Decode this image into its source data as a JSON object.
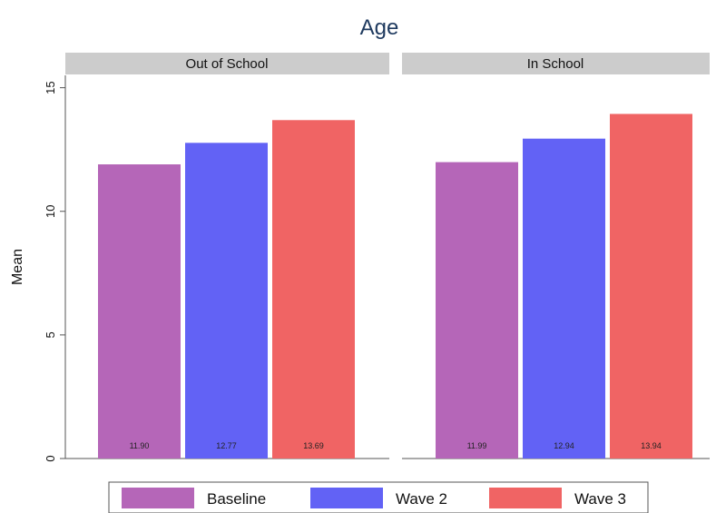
{
  "chart_data": {
    "type": "bar",
    "title": "Age",
    "ylabel": "Mean",
    "xlabel": "",
    "ylim": [
      0,
      15.5
    ],
    "yticks": [
      0,
      5,
      10,
      15
    ],
    "grid": false,
    "legend_position": "bottom",
    "series_colors": [
      "#b566b8",
      "#6262f5",
      "#f06464"
    ],
    "legend": [
      "Baseline",
      "Wave 2",
      "Wave 3"
    ],
    "panels": [
      {
        "label": "Out of School",
        "values": [
          11.9,
          12.77,
          13.69
        ],
        "value_labels": [
          "11.90",
          "12.77",
          "13.69"
        ]
      },
      {
        "label": "In School",
        "values": [
          11.99,
          12.94,
          13.94
        ],
        "value_labels": [
          "11.99",
          "12.94",
          "13.94"
        ]
      }
    ]
  }
}
